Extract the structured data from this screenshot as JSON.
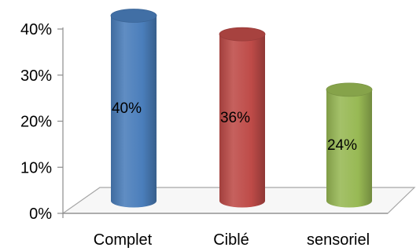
{
  "chart_data": {
    "type": "bar",
    "style": "3d-cylinder",
    "categories": [
      "Complet",
      "Ciblé",
      "sensoriel"
    ],
    "values": [
      40,
      36,
      24
    ],
    "data_labels": [
      "40%",
      "36%",
      "24%"
    ],
    "colors": [
      "#4a7ebb",
      "#be4b48",
      "#98b954"
    ],
    "ylim": [
      0,
      40
    ],
    "yticks": [
      0,
      10,
      20,
      30,
      40
    ],
    "ytick_labels": [
      "0%",
      "10%",
      "20%",
      "30%",
      "40%"
    ],
    "grid": false,
    "legend": "none",
    "title": "",
    "xlabel": "",
    "ylabel": ""
  }
}
